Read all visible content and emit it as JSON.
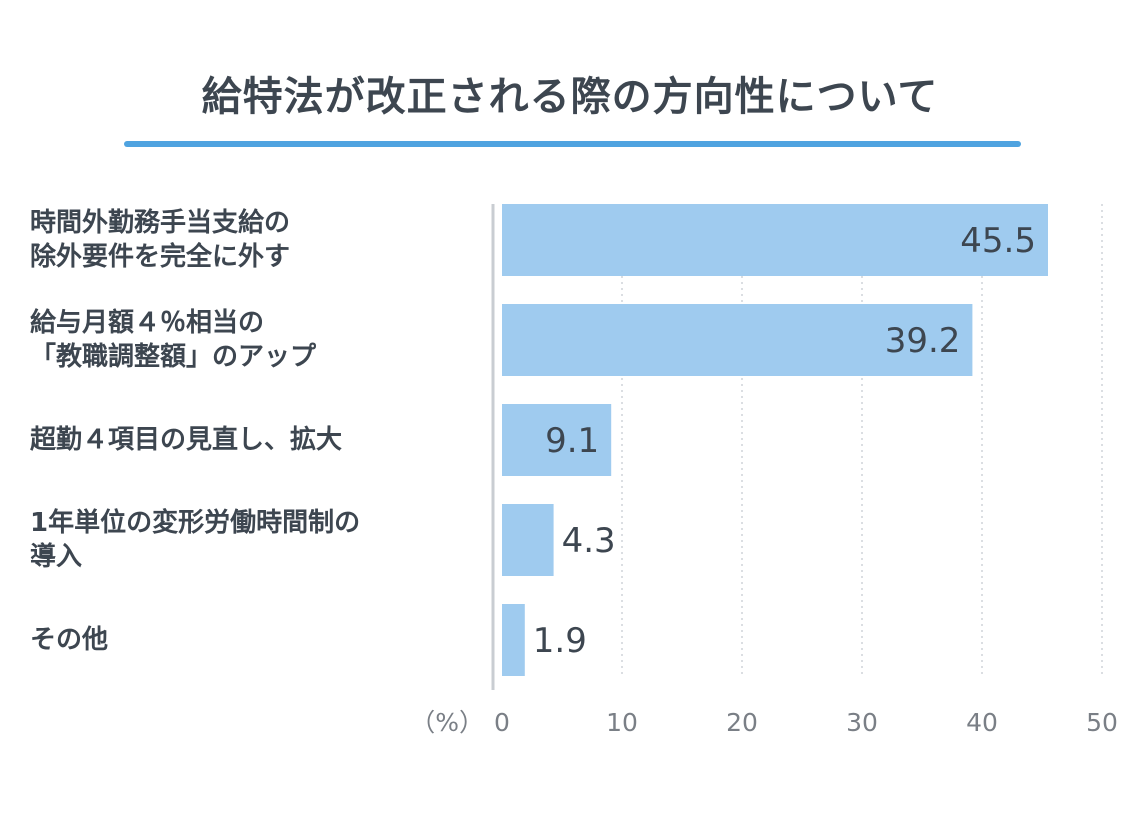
{
  "chart_data": {
    "type": "bar",
    "orientation": "horizontal",
    "title": "給特法が改正される際の方向性について",
    "categories": [
      [
        "時間外勤務手当支給の",
        "除外要件を完全に外す"
      ],
      [
        "給与月額４％相当の",
        "「教職調整額」のアップ"
      ],
      [
        "超勤４項目の見直し、拡大"
      ],
      [
        "1年単位の変形労働時間制の",
        "導入"
      ],
      [
        "その他"
      ]
    ],
    "values": [
      45.5,
      39.2,
      9.1,
      4.3,
      1.9
    ],
    "value_labels": [
      "45.5",
      "39.2",
      "9.1",
      "4.3",
      "1.9"
    ],
    "x_ticks": [
      "0",
      "10",
      "20",
      "30",
      "40",
      "50"
    ],
    "xlim": [
      0,
      50
    ],
    "unit_label": "（%）",
    "grid": true,
    "colors": {
      "bar": "#9fcbef",
      "title_rule": "#4fa3e0",
      "text": "#3d4650",
      "tick": "#7a7f86"
    }
  }
}
